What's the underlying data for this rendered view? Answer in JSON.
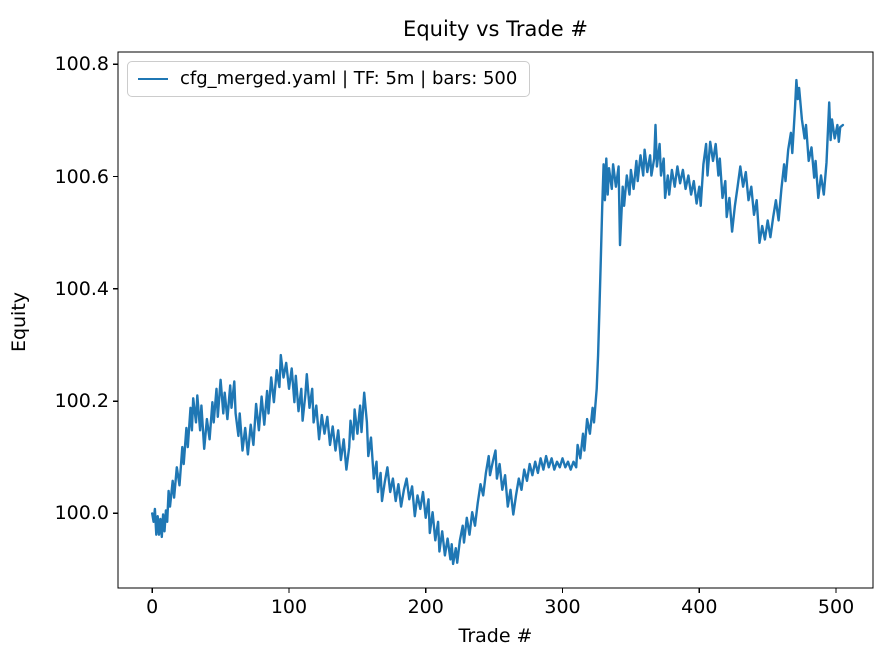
{
  "chart_data": {
    "type": "line",
    "title": "Equity vs Trade #",
    "xlabel": "Trade #",
    "ylabel": "Equity",
    "xlim": [
      -25,
      527
    ],
    "ylim": [
      99.867,
      100.822
    ],
    "grid": false,
    "x_ticks": [
      {
        "value": 0,
        "label": "0"
      },
      {
        "value": 100,
        "label": "100"
      },
      {
        "value": 200,
        "label": "200"
      },
      {
        "value": 300,
        "label": "300"
      },
      {
        "value": 400,
        "label": "400"
      },
      {
        "value": 500,
        "label": "500"
      }
    ],
    "y_ticks": [
      {
        "value": 100.0,
        "label": "100.0"
      },
      {
        "value": 100.2,
        "label": "100.2"
      },
      {
        "value": 100.4,
        "label": "100.4"
      },
      {
        "value": 100.6,
        "label": "100.6"
      },
      {
        "value": 100.8,
        "label": "100.8"
      }
    ],
    "legend": {
      "position": "upper left",
      "entries": [
        {
          "label": "cfg_merged.yaml | TF: 5m | bars: 500",
          "color": "#1f77b4"
        }
      ]
    },
    "line_color": "#1f77b4",
    "series": [
      {
        "name": "cfg_merged.yaml | TF: 5m | bars: 500",
        "points": [
          [
            0,
            100.0
          ],
          [
            1,
            99.985
          ],
          [
            2,
            100.008
          ],
          [
            3,
            99.962
          ],
          [
            4,
            99.995
          ],
          [
            5,
            99.962
          ],
          [
            6,
            99.99
          ],
          [
            7,
            99.958
          ],
          [
            8,
            99.998
          ],
          [
            9,
            99.968
          ],
          [
            10,
            100.005
          ],
          [
            11,
            99.985
          ],
          [
            12,
            100.04
          ],
          [
            13,
            100.012
          ],
          [
            15,
            100.058
          ],
          [
            16,
            100.028
          ],
          [
            18,
            100.082
          ],
          [
            20,
            100.05
          ],
          [
            22,
            100.118
          ],
          [
            23,
            100.088
          ],
          [
            25,
            100.152
          ],
          [
            26,
            100.118
          ],
          [
            28,
            100.188
          ],
          [
            29,
            100.148
          ],
          [
            30,
            100.205
          ],
          [
            32,
            100.162
          ],
          [
            33,
            100.21
          ],
          [
            35,
            100.148
          ],
          [
            36,
            100.192
          ],
          [
            38,
            100.115
          ],
          [
            40,
            100.168
          ],
          [
            42,
            100.132
          ],
          [
            44,
            100.198
          ],
          [
            45,
            100.162
          ],
          [
            47,
            100.222
          ],
          [
            48,
            100.172
          ],
          [
            50,
            100.238
          ],
          [
            52,
            100.178
          ],
          [
            53,
            100.215
          ],
          [
            55,
            100.168
          ],
          [
            57,
            100.228
          ],
          [
            58,
            100.188
          ],
          [
            60,
            100.235
          ],
          [
            61,
            100.178
          ],
          [
            63,
            100.138
          ],
          [
            64,
            100.178
          ],
          [
            66,
            100.112
          ],
          [
            68,
            100.152
          ],
          [
            70,
            100.105
          ],
          [
            72,
            100.158
          ],
          [
            74,
            100.122
          ],
          [
            76,
            100.195
          ],
          [
            78,
            100.148
          ],
          [
            80,
            100.208
          ],
          [
            82,
            100.158
          ],
          [
            84,
            100.218
          ],
          [
            85,
            100.178
          ],
          [
            87,
            100.242
          ],
          [
            89,
            100.198
          ],
          [
            91,
            100.255
          ],
          [
            93,
            100.225
          ],
          [
            94,
            100.282
          ],
          [
            96,
            100.242
          ],
          [
            98,
            100.268
          ],
          [
            100,
            100.222
          ],
          [
            102,
            100.258
          ],
          [
            104,
            100.198
          ],
          [
            105,
            100.245
          ],
          [
            107,
            100.182
          ],
          [
            109,
            100.222
          ],
          [
            110,
            100.165
          ],
          [
            112,
            100.212
          ],
          [
            113,
            100.248
          ],
          [
            115,
            100.188
          ],
          [
            117,
            100.222
          ],
          [
            118,
            100.162
          ],
          [
            120,
            100.192
          ],
          [
            122,
            100.132
          ],
          [
            124,
            100.175
          ],
          [
            126,
            100.142
          ],
          [
            128,
            100.172
          ],
          [
            130,
            100.122
          ],
          [
            132,
            100.155
          ],
          [
            134,
            100.112
          ],
          [
            136,
            100.148
          ],
          [
            138,
            100.095
          ],
          [
            140,
            100.132
          ],
          [
            142,
            100.078
          ],
          [
            144,
            100.118
          ],
          [
            145,
            100.165
          ],
          [
            147,
            100.132
          ],
          [
            148,
            100.185
          ],
          [
            150,
            100.142
          ],
          [
            152,
            100.192
          ],
          [
            153,
            100.145
          ],
          [
            155,
            100.215
          ],
          [
            157,
            100.162
          ],
          [
            158,
            100.102
          ],
          [
            160,
            100.135
          ],
          [
            162,
            100.062
          ],
          [
            164,
            100.092
          ],
          [
            165,
            100.038
          ],
          [
            167,
            100.072
          ],
          [
            168,
            100.022
          ],
          [
            170,
            100.055
          ],
          [
            172,
            100.082
          ],
          [
            174,
            100.038
          ],
          [
            176,
            100.062
          ],
          [
            178,
            100.022
          ],
          [
            180,
            100.052
          ],
          [
            182,
            100.012
          ],
          [
            184,
            100.042
          ],
          [
            186,
            100.062
          ],
          [
            188,
            100.025
          ],
          [
            190,
            100.048
          ],
          [
            192,
            99.995
          ],
          [
            194,
            100.032
          ],
          [
            196,
            100.008
          ],
          [
            198,
            100.038
          ],
          [
            200,
            99.992
          ],
          [
            202,
            100.025
          ],
          [
            203,
            99.965
          ],
          [
            205,
            100.002
          ],
          [
            207,
            99.952
          ],
          [
            209,
            99.985
          ],
          [
            210,
            99.932
          ],
          [
            212,
            99.968
          ],
          [
            214,
            99.925
          ],
          [
            216,
            99.955
          ],
          [
            218,
            99.918
          ],
          [
            219,
            99.945
          ],
          [
            220,
            99.91
          ],
          [
            222,
            99.938
          ],
          [
            223,
            99.912
          ],
          [
            225,
            99.952
          ],
          [
            227,
            99.978
          ],
          [
            228,
            99.948
          ],
          [
            230,
            99.992
          ],
          [
            232,
            99.962
          ],
          [
            234,
            100.002
          ],
          [
            236,
            99.978
          ],
          [
            238,
            100.018
          ],
          [
            240,
            100.052
          ],
          [
            242,
            100.032
          ],
          [
            244,
            100.072
          ],
          [
            246,
            100.102
          ],
          [
            247,
            100.068
          ],
          [
            249,
            100.092
          ],
          [
            251,
            100.112
          ],
          [
            252,
            100.062
          ],
          [
            254,
            100.088
          ],
          [
            256,
            100.042
          ],
          [
            258,
            100.068
          ],
          [
            260,
            100.012
          ],
          [
            262,
            100.042
          ],
          [
            264,
            99.998
          ],
          [
            266,
            100.032
          ],
          [
            268,
            100.062
          ],
          [
            270,
            100.042
          ],
          [
            272,
            100.078
          ],
          [
            274,
            100.058
          ],
          [
            276,
            100.088
          ],
          [
            278,
            100.068
          ],
          [
            280,
            100.092
          ],
          [
            282,
            100.072
          ],
          [
            284,
            100.098
          ],
          [
            286,
            100.078
          ],
          [
            288,
            100.102
          ],
          [
            290,
            100.082
          ],
          [
            292,
            100.098
          ],
          [
            294,
            100.078
          ],
          [
            296,
            100.092
          ],
          [
            298,
            100.082
          ],
          [
            300,
            100.098
          ],
          [
            302,
            100.082
          ],
          [
            304,
            100.092
          ],
          [
            306,
            100.078
          ],
          [
            308,
            100.092
          ],
          [
            310,
            100.082
          ],
          [
            311,
            100.122
          ],
          [
            313,
            100.098
          ],
          [
            315,
            100.142
          ],
          [
            316,
            100.112
          ],
          [
            318,
            100.168
          ],
          [
            320,
            100.142
          ],
          [
            322,
            100.188
          ],
          [
            323,
            100.162
          ],
          [
            325,
            100.222
          ],
          [
            326,
            100.282
          ],
          [
            327,
            100.362
          ],
          [
            328,
            100.452
          ],
          [
            329,
            100.545
          ],
          [
            330,
            100.622
          ],
          [
            331,
            100.558
          ],
          [
            332,
            100.632
          ],
          [
            333,
            100.568
          ],
          [
            334,
            100.615
          ],
          [
            336,
            100.578
          ],
          [
            337,
            100.622
          ],
          [
            339,
            100.582
          ],
          [
            341,
            100.618
          ],
          [
            342,
            100.478
          ],
          [
            344,
            100.582
          ],
          [
            345,
            100.548
          ],
          [
            347,
            100.602
          ],
          [
            349,
            100.568
          ],
          [
            350,
            100.612
          ],
          [
            352,
            100.578
          ],
          [
            354,
            100.628
          ],
          [
            355,
            100.592
          ],
          [
            357,
            100.638
          ],
          [
            359,
            100.602
          ],
          [
            360,
            100.648
          ],
          [
            362,
            100.608
          ],
          [
            364,
            100.638
          ],
          [
            365,
            100.602
          ],
          [
            367,
            100.632
          ],
          [
            368,
            100.692
          ],
          [
            369,
            100.618
          ],
          [
            371,
            100.658
          ],
          [
            372,
            100.602
          ],
          [
            374,
            100.632
          ],
          [
            375,
            100.562
          ],
          [
            377,
            100.602
          ],
          [
            378,
            100.568
          ],
          [
            380,
            100.612
          ],
          [
            382,
            100.582
          ],
          [
            384,
            100.618
          ],
          [
            386,
            100.588
          ],
          [
            388,
            100.612
          ],
          [
            390,
            100.578
          ],
          [
            392,
            100.602
          ],
          [
            394,
            100.568
          ],
          [
            396,
            100.592
          ],
          [
            398,
            100.552
          ],
          [
            400,
            100.582
          ],
          [
            401,
            100.548
          ],
          [
            403,
            100.622
          ],
          [
            405,
            100.658
          ],
          [
            406,
            100.602
          ],
          [
            408,
            100.662
          ],
          [
            410,
            100.628
          ],
          [
            412,
            100.658
          ],
          [
            414,
            100.602
          ],
          [
            415,
            100.632
          ],
          [
            417,
            100.562
          ],
          [
            419,
            100.592
          ],
          [
            420,
            100.528
          ],
          [
            422,
            100.562
          ],
          [
            424,
            100.502
          ],
          [
            426,
            100.548
          ],
          [
            428,
            100.582
          ],
          [
            430,
            100.618
          ],
          [
            432,
            100.582
          ],
          [
            434,
            100.608
          ],
          [
            436,
            100.558
          ],
          [
            438,
            100.582
          ],
          [
            440,
            100.532
          ],
          [
            442,
            100.558
          ],
          [
            444,
            100.482
          ],
          [
            446,
            100.512
          ],
          [
            448,
            100.488
          ],
          [
            450,
            100.522
          ],
          [
            452,
            100.492
          ],
          [
            454,
            100.528
          ],
          [
            456,
            100.558
          ],
          [
            458,
            100.522
          ],
          [
            460,
            100.578
          ],
          [
            462,
            100.622
          ],
          [
            463,
            100.592
          ],
          [
            465,
            100.648
          ],
          [
            467,
            100.678
          ],
          [
            468,
            100.642
          ],
          [
            470,
            100.722
          ],
          [
            471,
            100.772
          ],
          [
            472,
            100.738
          ],
          [
            473,
            100.758
          ],
          [
            475,
            100.702
          ],
          [
            477,
            100.668
          ],
          [
            478,
            100.692
          ],
          [
            480,
            100.628
          ],
          [
            482,
            100.652
          ],
          [
            484,
            100.598
          ],
          [
            485,
            100.628
          ],
          [
            487,
            100.562
          ],
          [
            489,
            100.602
          ],
          [
            491,
            100.568
          ],
          [
            493,
            100.625
          ],
          [
            495,
            100.732
          ],
          [
            496,
            100.665
          ],
          [
            497,
            100.702
          ],
          [
            499,
            100.668
          ],
          [
            501,
            100.692
          ],
          [
            502,
            100.662
          ],
          [
            503,
            100.688
          ],
          [
            505,
            100.692
          ]
        ]
      }
    ]
  }
}
